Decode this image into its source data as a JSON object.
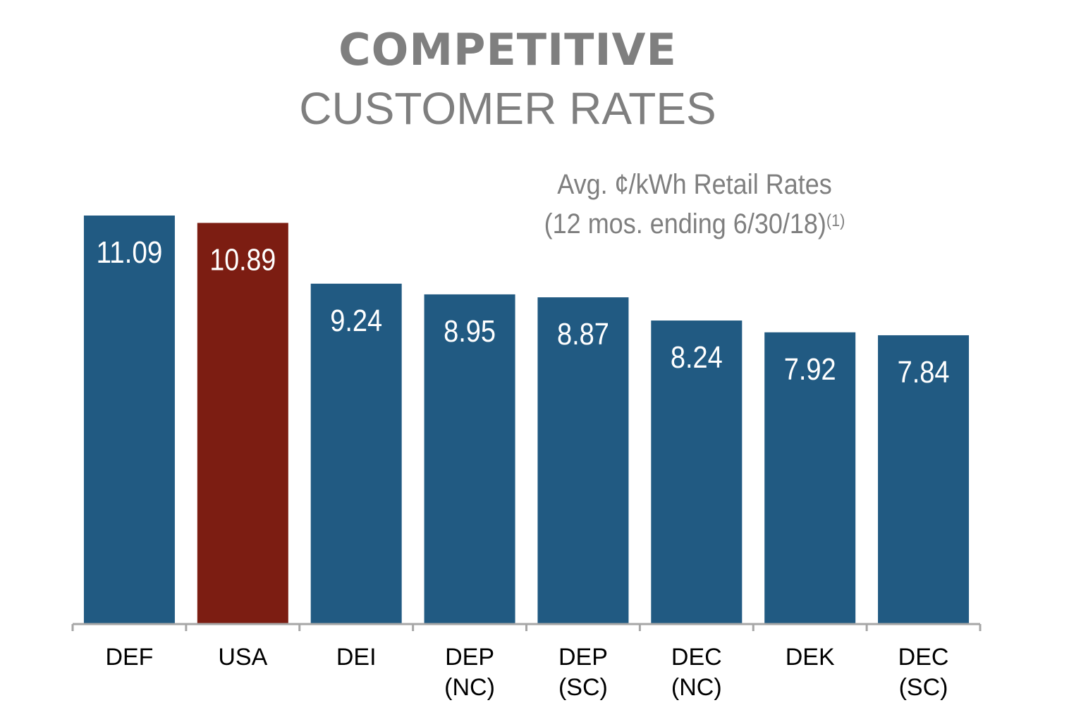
{
  "header": {
    "title": "COMPETITIVE",
    "subtitle": "CUSTOMER RATES"
  },
  "chart_data": {
    "type": "bar",
    "title": "Avg. ¢/kWh Retail Rates",
    "subtitle_line2": "(12 mos. ending 6/30/18)",
    "footnote_marker": "(1)",
    "categories": [
      [
        "DEF"
      ],
      [
        "USA"
      ],
      [
        "DEI"
      ],
      [
        "DEP",
        "(NC)"
      ],
      [
        "DEP",
        "(SC)"
      ],
      [
        "DEC",
        "(NC)"
      ],
      [
        "DEK"
      ],
      [
        "DEC",
        "(SC)"
      ]
    ],
    "values": [
      11.09,
      10.89,
      9.24,
      8.95,
      8.87,
      8.24,
      7.92,
      7.84
    ],
    "data_labels": [
      "11.09",
      "10.89",
      "9.24",
      "8.95",
      "8.87",
      "8.24",
      "7.92",
      "7.84"
    ],
    "colors": [
      "#215a82",
      "#7c1d12",
      "#215a82",
      "#215a82",
      "#215a82",
      "#215a82",
      "#215a82",
      "#215a82"
    ],
    "axis_color": "#a6a6a6",
    "ylim": [
      0,
      11.09
    ],
    "grid": false,
    "legend": "none"
  }
}
